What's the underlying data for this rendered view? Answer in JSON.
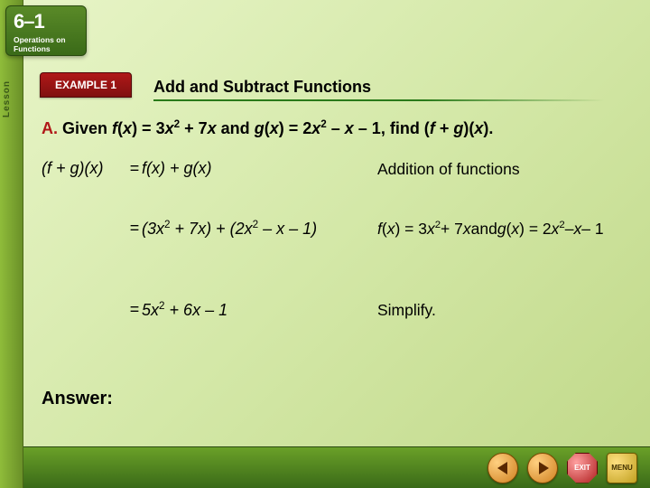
{
  "lesson": {
    "number": "6–1",
    "title": "Operations on Functions",
    "sidebar_text": "Lesson"
  },
  "example": {
    "tab_label": "EXAMPLE 1",
    "slide_title": "Add and Subtract Functions"
  },
  "problem": {
    "part_label": "A.",
    "text_html": "Given <span class='it'>f</span>(<span class='it'>x</span>) = 3<span class='it'>x</span><sup>2</sup> + 7<span class='it'>x</span> and <span class='it'>g</span>(<span class='it'>x</span>) = 2<span class='it'>x</span><sup>2</sup> – <span class='it'>x</span> – 1, find (<span class='it'>f</span> + <span class='it'>g</span>)(<span class='it'>x</span>)."
  },
  "steps": [
    {
      "lhs": "(<span class='it'>f</span> + <span class='it'>g</span>)(<span class='it'>x</span>)",
      "eq": "=",
      "rhs": "<span class='it'>f</span>(<span class='it'>x</span>) + <span class='it'>g</span>(<span class='it'>x</span>)",
      "reason": "Addition of functions"
    },
    {
      "lhs": "",
      "eq": "=",
      "rhs": "(3<span class='it'>x</span><sup>2</sup> + 7<span class='it'>x</span>) + (2<span class='it'>x</span><sup>2</sup> – <span class='it'>x</span> – 1)",
      "reason": "<span class='it'>f</span>(<span class='it'>x</span>) = 3<span class='it'>x</span><sup>2</sup> + 7<span class='it'>x</span> and <span class='it'>g</span>(<span class='it'>x</span>) = 2<span class='it'>x</span><sup>2</sup> – <span class='it'>x</span> – 1"
    },
    {
      "lhs": "",
      "eq": "=",
      "rhs": "5<span class='it'>x</span><sup>2</sup> + 6<span class='it'>x</span> – 1",
      "reason": "Simplify."
    }
  ],
  "answer_label": "Answer:",
  "footer": {
    "prev_label": "prev",
    "next_label": "next",
    "exit_label": "EXIT",
    "menu_label": "MENU"
  },
  "colors": {
    "bg_light": "#e8f5c8",
    "bg_dark": "#c0d888",
    "green_dark": "#3a6a18",
    "red": "#b01818"
  },
  "fonts": {
    "body_pt": 18,
    "title_pt": 18,
    "lesson_num_pt": 22
  }
}
